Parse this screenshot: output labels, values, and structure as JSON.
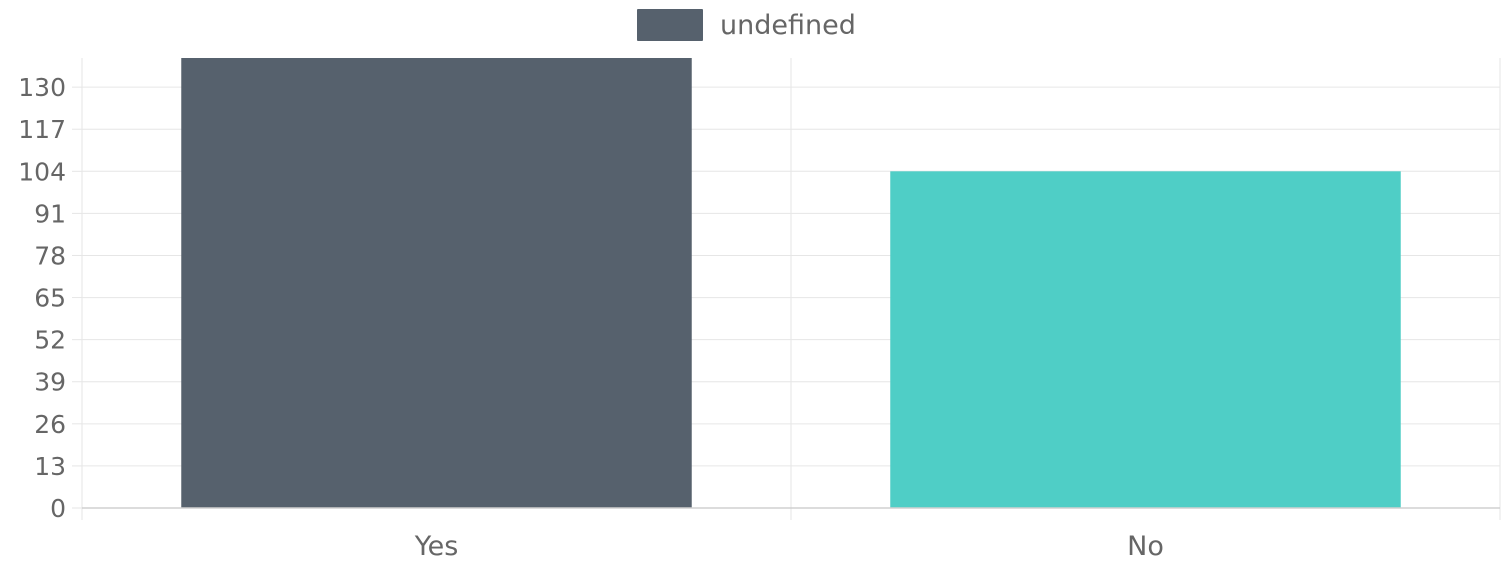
{
  "chart_data": {
    "type": "bar",
    "categories": [
      "Yes",
      "No"
    ],
    "series": [
      {
        "name": "undefined",
        "values": [
          139,
          104
        ]
      }
    ],
    "bar_colors": [
      "#56616d",
      "#4fcec6"
    ],
    "legend": {
      "label": "undefined",
      "color": "#56616d",
      "placement": "top-center"
    },
    "yticks": [
      0,
      13,
      26,
      39,
      52,
      65,
      78,
      91,
      104,
      117,
      130
    ],
    "ylim": [
      0,
      139
    ],
    "grid": true
  }
}
